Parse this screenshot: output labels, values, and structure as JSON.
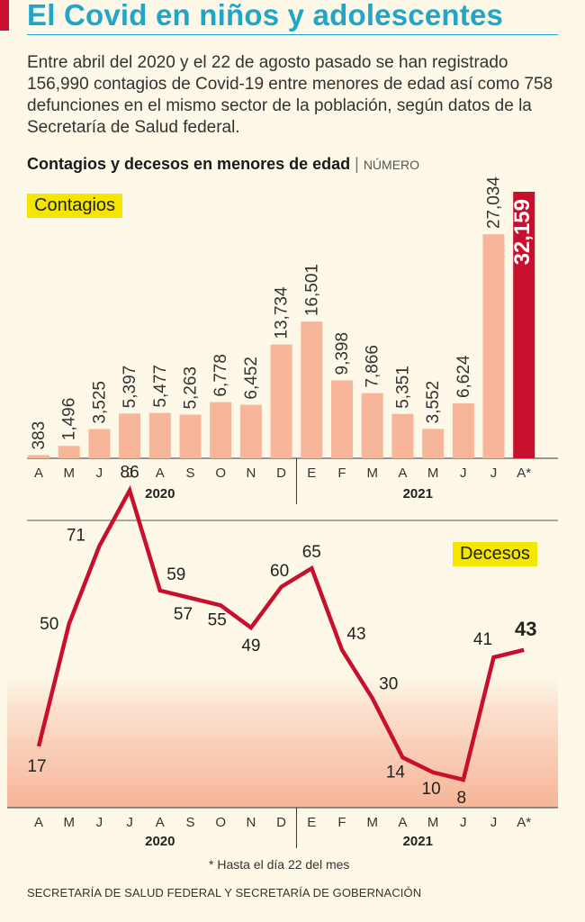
{
  "header": {
    "title": "El Covid en niños y adolescentes",
    "intro": "Entre abril del 2020 y el 22 de agosto pasado se han registrado 156,990 contagios de Covid-19 entre menores de edad así como 758 defunciones en el mismo sector de la población, según datos de la Secretaría de Salud federal.",
    "subtitle_bold": "Contagios y decesos en menores de edad",
    "subtitle_sep": " | ",
    "subtitle_unit": "NÚMERO"
  },
  "colors": {
    "accent_blue": "#1fa6c8",
    "bar": "#f7b59a",
    "bar_highlight": "#c8102e",
    "line": "#c8102e",
    "highlight_tag": "#f5e600",
    "background": "#fdf8e7"
  },
  "chart_data": [
    {
      "type": "bar",
      "label": "Contagios",
      "categories": [
        "A",
        "M",
        "J",
        "J",
        "A",
        "S",
        "O",
        "N",
        "D",
        "E",
        "F",
        "M",
        "A",
        "M",
        "J",
        "J",
        "A*"
      ],
      "values": [
        383,
        1496,
        3525,
        5397,
        5477,
        5263,
        6778,
        6452,
        13734,
        16501,
        9398,
        7866,
        5351,
        3552,
        6624,
        27034,
        32159
      ],
      "value_labels": [
        "383",
        "1,496",
        "3,525",
        "5,397",
        "5,477",
        "5,263",
        "6,778",
        "6,452",
        "13,734",
        "16,501",
        "9,398",
        "7,866",
        "5,351",
        "3,552",
        "6,624",
        "27,034",
        "32,159"
      ],
      "highlight_index": 16,
      "years": [
        {
          "label": "2020",
          "start": 0,
          "end": 8
        },
        {
          "label": "2021",
          "start": 9,
          "end": 16
        }
      ],
      "ylim": [
        0,
        32159
      ]
    },
    {
      "type": "line",
      "label": "Decesos",
      "categories": [
        "A",
        "M",
        "J",
        "J",
        "A",
        "S",
        "O",
        "N",
        "D",
        "E",
        "F",
        "M",
        "A",
        "M",
        "J",
        "J",
        "A*"
      ],
      "values": [
        17,
        50,
        71,
        86,
        59,
        57,
        55,
        49,
        60,
        65,
        43,
        30,
        14,
        10,
        8,
        41,
        43
      ],
      "highlight_index": 16,
      "years": [
        {
          "label": "2020",
          "start": 0,
          "end": 8
        },
        {
          "label": "2021",
          "start": 9,
          "end": 16
        }
      ],
      "ylim": [
        0,
        86
      ]
    }
  ],
  "footnote": "* Hasta el día 22 del mes",
  "source": "SECRETARÍA DE SALUD FEDERAL Y SECRETARÍA DE GOBERNACIÓN"
}
